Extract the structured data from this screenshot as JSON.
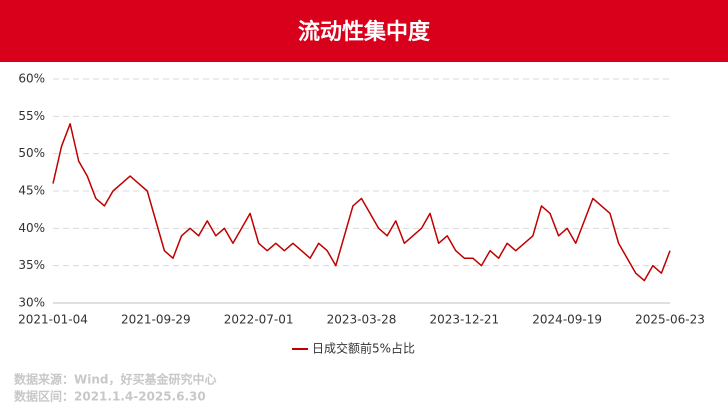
{
  "chart_data": {
    "type": "line",
    "title": "流动性集中度",
    "categories": [
      "2021-01-04",
      null,
      null,
      null,
      null,
      null,
      null,
      null,
      null,
      null,
      null,
      null,
      "2021-09-29",
      null,
      null,
      null,
      null,
      null,
      null,
      null,
      null,
      null,
      null,
      null,
      "2022-07-01",
      null,
      null,
      null,
      null,
      null,
      null,
      null,
      null,
      null,
      null,
      null,
      "2023-03-28",
      null,
      null,
      null,
      null,
      null,
      null,
      null,
      null,
      null,
      null,
      null,
      "2023-12-21",
      null,
      null,
      null,
      null,
      null,
      null,
      null,
      null,
      null,
      null,
      null,
      "2024-09-19",
      null,
      null,
      null,
      null,
      null,
      null,
      null,
      null,
      null,
      null,
      null,
      "2025-06-23"
    ],
    "series": [
      {
        "name": "日成交额前5%占比",
        "color": "#c00000",
        "values": [
          46,
          51,
          54,
          49,
          47,
          44,
          43,
          45,
          46,
          47,
          46,
          45,
          41,
          37,
          36,
          39,
          40,
          39,
          41,
          39,
          40,
          38,
          40,
          42,
          38,
          37,
          38,
          37,
          38,
          37,
          36,
          38,
          37,
          35,
          39,
          43,
          44,
          42,
          40,
          39,
          41,
          38,
          39,
          40,
          42,
          38,
          39,
          37,
          36,
          36,
          35,
          37,
          36,
          38,
          37,
          38,
          39,
          43,
          42,
          39,
          40,
          38,
          41,
          44,
          43,
          42,
          38,
          36,
          34,
          33,
          35,
          34,
          37
        ]
      }
    ],
    "ylim": [
      30,
      60
    ],
    "yticks": [
      {
        "value": 30,
        "label": "30%"
      },
      {
        "value": 35,
        "label": "35%"
      },
      {
        "value": 40,
        "label": "40%"
      },
      {
        "value": 45,
        "label": "45%"
      },
      {
        "value": 50,
        "label": "50%"
      },
      {
        "value": 55,
        "label": "55%"
      },
      {
        "value": 60,
        "label": "60%"
      }
    ],
    "grid": true,
    "footnotes": [
      "数据来源：Wind，好买基金研究中心",
      "数据区间：2021.1.4-2025.6.30"
    ]
  }
}
